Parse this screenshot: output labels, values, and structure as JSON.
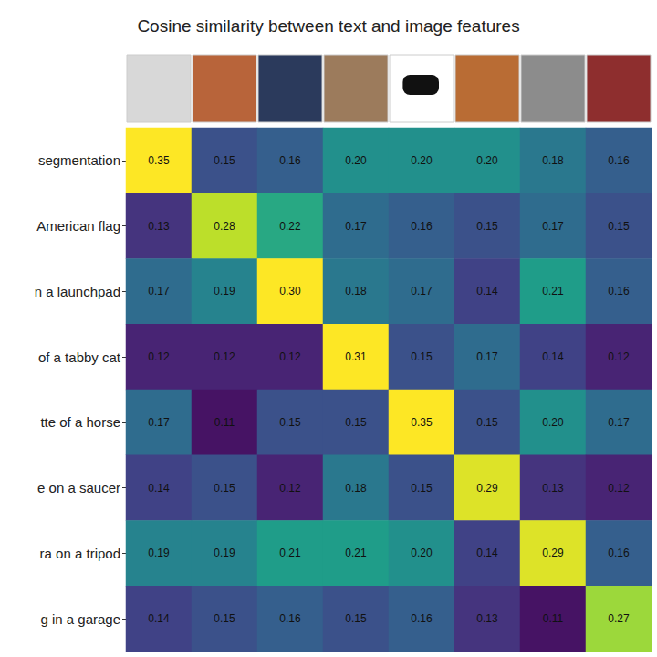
{
  "chart_data": {
    "type": "heatmap",
    "title": "Cosine similarity between text and image features",
    "categories": [
      "segmentation",
      "American flag",
      "n a launchpad",
      "of a tabby cat",
      "tte of a horse",
      "e on a saucer",
      "ra on a tripod",
      "g in a garage"
    ],
    "cells": [
      [
        0.35,
        0.15,
        0.16,
        0.2,
        0.2,
        0.2,
        0.18,
        0.16
      ],
      [
        0.13,
        0.28,
        0.22,
        0.17,
        0.16,
        0.15,
        0.17,
        0.15
      ],
      [
        0.17,
        0.19,
        0.3,
        0.18,
        0.17,
        0.14,
        0.21,
        0.16
      ],
      [
        0.12,
        0.12,
        0.12,
        0.31,
        0.15,
        0.17,
        0.14,
        0.12
      ],
      [
        0.17,
        0.11,
        0.15,
        0.15,
        0.35,
        0.15,
        0.2,
        0.17
      ],
      [
        0.14,
        0.15,
        0.12,
        0.18,
        0.15,
        0.29,
        0.13,
        0.12
      ],
      [
        0.19,
        0.19,
        0.21,
        0.21,
        0.2,
        0.14,
        0.29,
        0.16
      ],
      [
        0.14,
        0.15,
        0.16,
        0.15,
        0.16,
        0.13,
        0.11,
        0.27
      ]
    ],
    "value_labels": [
      [
        "0.35",
        "0.15",
        "0.16",
        "0.20",
        "0.20",
        "0.20",
        "0.18",
        "0.16"
      ],
      [
        "0.13",
        "0.28",
        "0.22",
        "0.17",
        "0.16",
        "0.15",
        "0.17",
        "0.15"
      ],
      [
        "0.17",
        "0.19",
        "0.30",
        "0.18",
        "0.17",
        "0.14",
        "0.21",
        "0.16"
      ],
      [
        "0.12",
        "0.12",
        "0.12",
        "0.31",
        "0.15",
        "0.17",
        "0.14",
        "0.12"
      ],
      [
        "0.17",
        "0.11",
        "0.15",
        "0.15",
        "0.35",
        "0.15",
        "0.20",
        "0.17"
      ],
      [
        "0.14",
        "0.15",
        "0.12",
        "0.18",
        "0.15",
        "0.29",
        "0.13",
        "0.12"
      ],
      [
        "0.19",
        "0.19",
        "0.21",
        "0.21",
        "0.20",
        "0.14",
        "0.29",
        "0.16"
      ],
      [
        "0.14",
        "0.15",
        "0.16",
        "0.15",
        "0.16",
        "0.13",
        "0.11",
        "0.27"
      ]
    ],
    "color_range": [
      0.1,
      0.3
    ],
    "data_labels": true,
    "tick_labels": "y",
    "grid": false
  }
}
